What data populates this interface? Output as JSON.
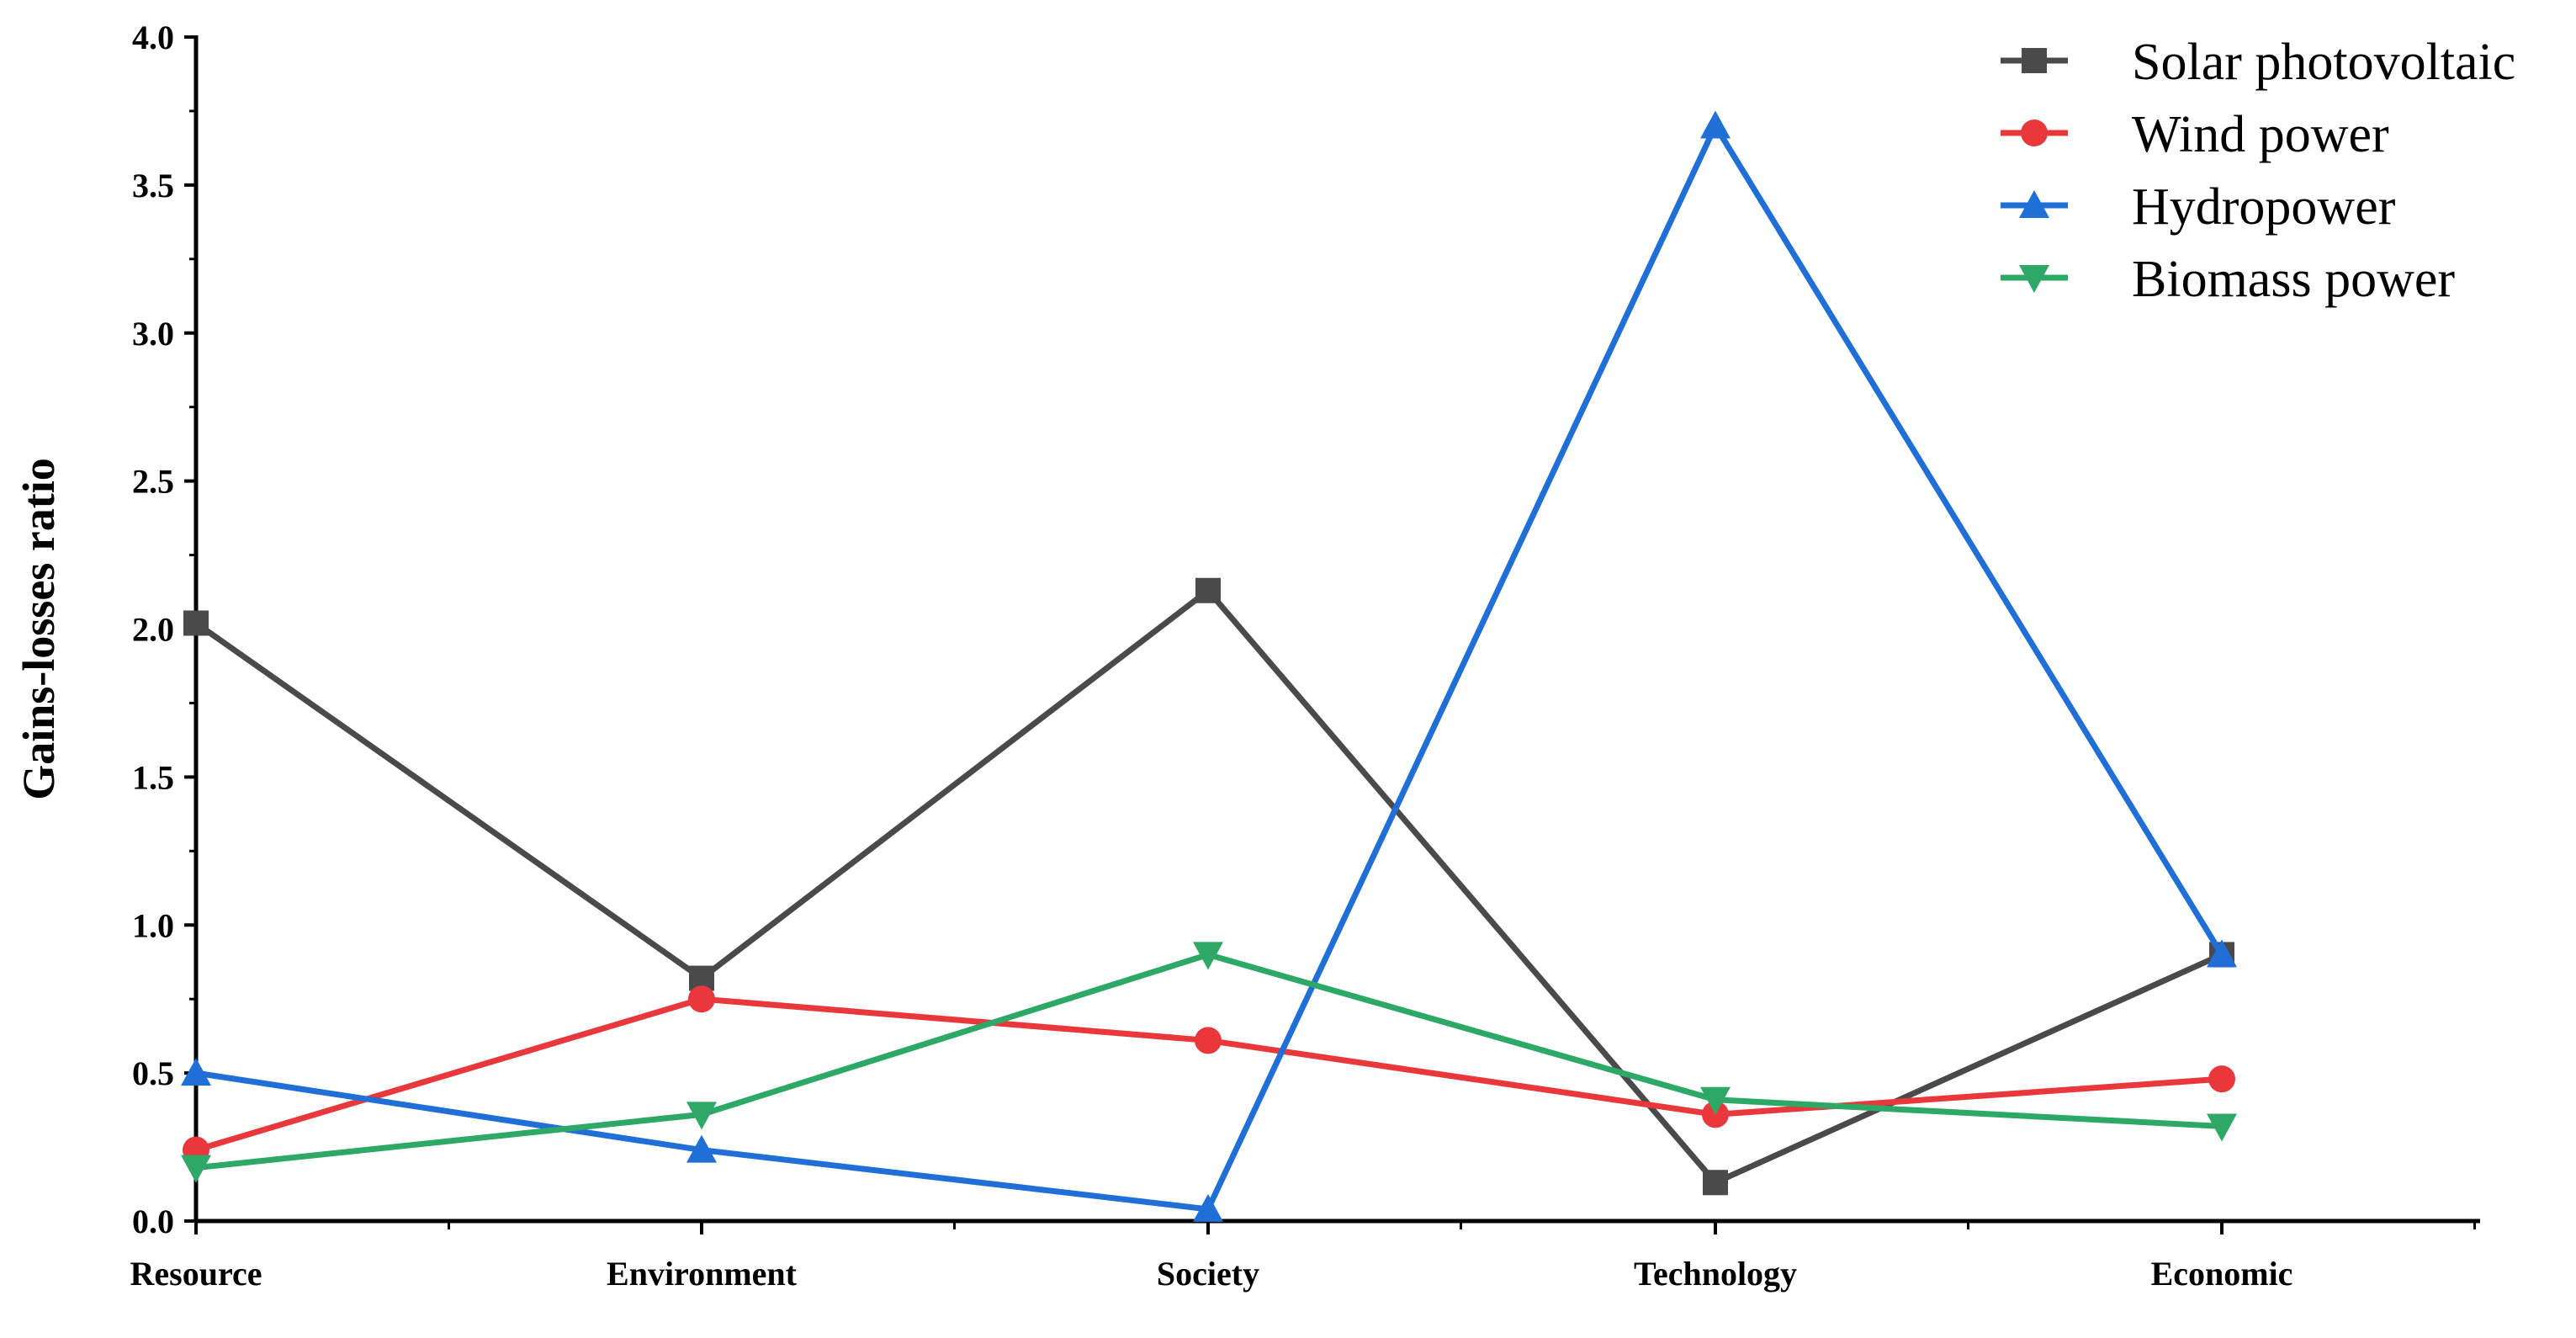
{
  "chart_data": {
    "type": "line",
    "title": "",
    "xlabel": "",
    "ylabel": "Gains-losses ratio",
    "categories": [
      "Resource",
      "Environment",
      "Society",
      "Technology",
      "Economic"
    ],
    "ylim": [
      0,
      4.0
    ],
    "yticks": [
      "0.0",
      "0.5",
      "1.0",
      "1.5",
      "2.0",
      "2.5",
      "3.0",
      "3.5",
      "4.0"
    ],
    "grid": false,
    "legend_position": "top-right",
    "series": [
      {
        "name": "Solar photovoltaic",
        "color": "#4a4a4a",
        "marker": "square",
        "values": [
          2.02,
          0.82,
          2.13,
          0.13,
          0.9
        ]
      },
      {
        "name": "Wind power",
        "color": "#e8383b",
        "marker": "circle",
        "values": [
          0.24,
          0.75,
          0.61,
          0.36,
          0.48
        ]
      },
      {
        "name": "Hydropower",
        "color": "#1f6fd6",
        "marker": "triangle-up",
        "values": [
          0.5,
          0.24,
          0.04,
          3.7,
          0.9
        ]
      },
      {
        "name": "Biomass power",
        "color": "#2ea866",
        "marker": "triangle-down",
        "values": [
          0.18,
          0.36,
          0.9,
          0.41,
          0.32
        ]
      }
    ]
  }
}
